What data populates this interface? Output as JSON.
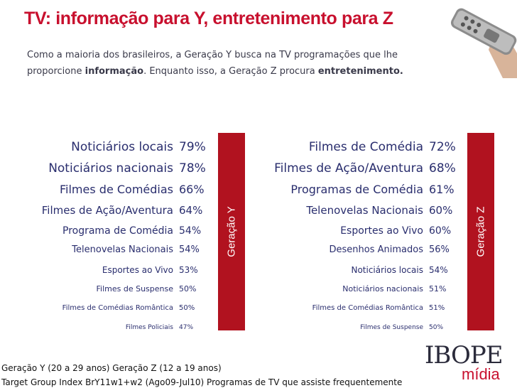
{
  "title": "TV: informação para Y, entretenimento para Z",
  "intro": {
    "part1": "Como a maioria dos brasileiros, a Geração Y busca na TV programações que lhe proporcione ",
    "bold1": "informação",
    "part2": ". Enquanto isso, a Geração Z procura ",
    "bold2": "entretenimento."
  },
  "left_band": "Geração Y",
  "right_band": "Geração Z",
  "left_list": [
    {
      "label": "Noticiários locais",
      "value": "79%"
    },
    {
      "label": "Noticiários nacionais",
      "value": "78%"
    },
    {
      "label": "Filmes de Comédias",
      "value": "66%"
    },
    {
      "label": "Filmes de Ação/Aventura",
      "value": "64%"
    },
    {
      "label": "Programa de Comédia",
      "value": "54%"
    },
    {
      "label": "Telenovelas Nacionais",
      "value": "54%"
    },
    {
      "label": "Esportes ao Vivo",
      "value": "53%"
    },
    {
      "label": "Filmes de Suspense",
      "value": "50%"
    },
    {
      "label": "Filmes de Comédias Romântica",
      "value": "50%"
    },
    {
      "label": "Filmes  Policiais",
      "value": "47%"
    }
  ],
  "right_list": [
    {
      "label": "Filmes de Comédia",
      "value": "72%"
    },
    {
      "label": "Filmes de Ação/Aventura",
      "value": "68%"
    },
    {
      "label": "Programas de Comédia",
      "value": "61%"
    },
    {
      "label": "Telenovelas Nacionais",
      "value": "60%"
    },
    {
      "label": "Esportes ao Vivo",
      "value": "60%"
    },
    {
      "label": "Desenhos Animados",
      "value": "56%"
    },
    {
      "label": "Noticiários locais",
      "value": "54%"
    },
    {
      "label": "Noticiários nacionais",
      "value": "51%"
    },
    {
      "label": "Filmes de Comédias Romântica",
      "value": "51%"
    },
    {
      "label": "Filmes de Suspense",
      "value": "50%"
    }
  ],
  "footer": {
    "line1": "Geração Y (20 a 29 anos)  Geração Z (12 a 19 anos)",
    "line2a": "Target Group Index BrY11w1+w2 (Ago09-Jul10)",
    "line2b": "Programas de TV que assiste frequentemente"
  },
  "logo": {
    "top": "IBOPE",
    "bottom": "mídia"
  },
  "icons": {
    "remote": "tv-remote-icon"
  },
  "colors": {
    "accent": "#c8102e",
    "band": "#b1121f",
    "text": "#2a2e6e"
  }
}
